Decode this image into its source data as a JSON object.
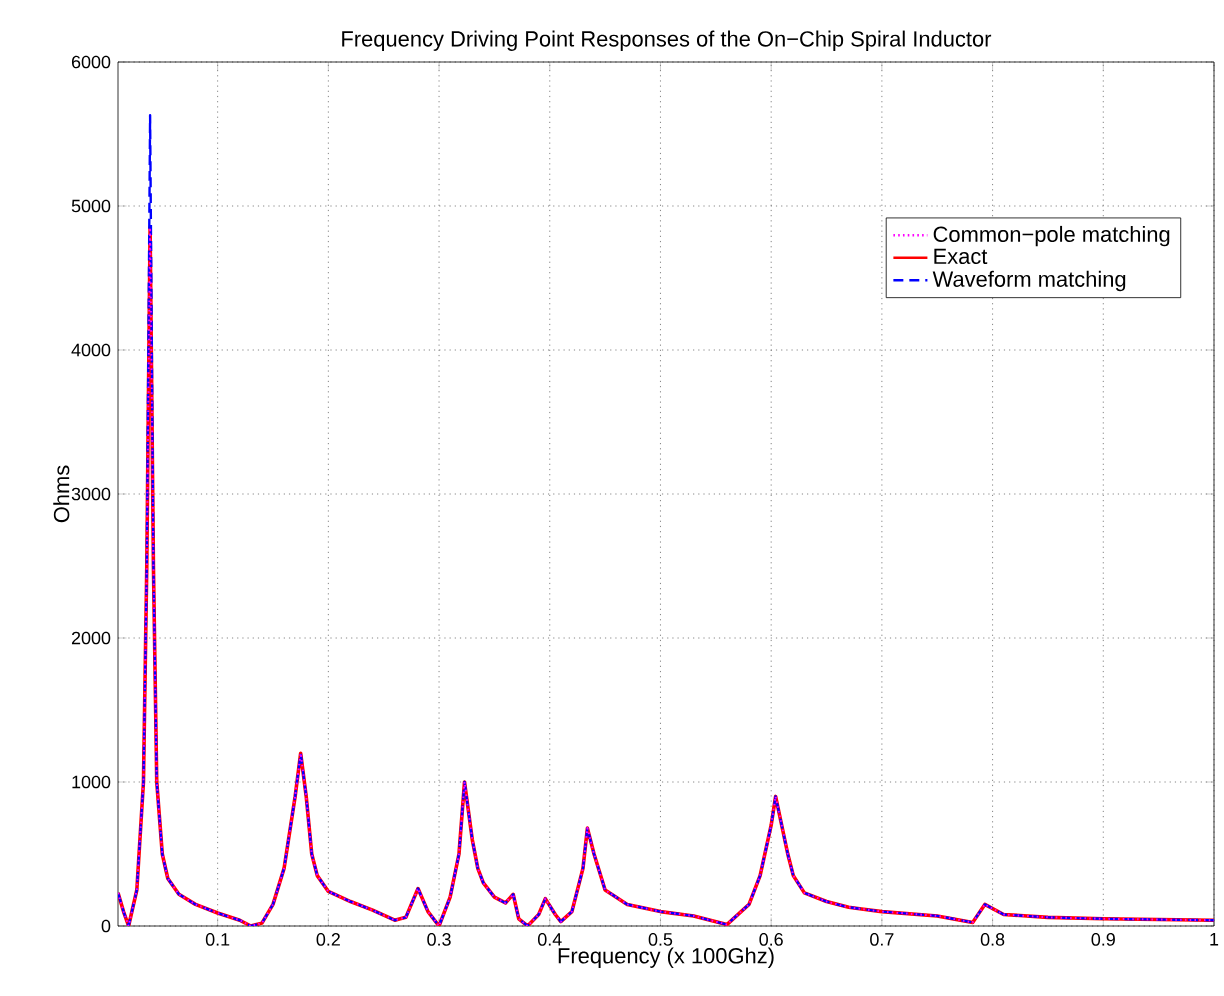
{
  "chart_data": {
    "type": "line",
    "title": "Frequency Driving Point Responses of the On−Chip Spiral Inductor",
    "xlabel": "Frequency (x 100Ghz)",
    "ylabel": "Ohms",
    "x": [
      0.01,
      0.015,
      0.0196,
      0.027,
      0.033,
      0.036,
      0.039,
      0.042,
      0.045,
      0.05,
      0.055,
      0.065,
      0.08,
      0.1,
      0.12,
      0.13,
      0.14,
      0.15,
      0.16,
      0.17,
      0.175,
      0.18,
      0.185,
      0.19,
      0.2,
      0.22,
      0.24,
      0.26,
      0.27,
      0.281,
      0.29,
      0.3,
      0.31,
      0.318,
      0.323,
      0.33,
      0.335,
      0.34,
      0.35,
      0.36,
      0.367,
      0.372,
      0.38,
      0.39,
      0.396,
      0.405,
      0.41,
      0.42,
      0.43,
      0.434,
      0.44,
      0.45,
      0.47,
      0.5,
      0.53,
      0.56,
      0.58,
      0.59,
      0.6,
      0.604,
      0.615,
      0.62,
      0.63,
      0.65,
      0.67,
      0.68,
      0.7,
      0.75,
      0.782,
      0.793,
      0.81,
      0.85,
      0.9,
      1.0
    ],
    "series": [
      {
        "name": "Common−pole matching",
        "color": "#ff00ff",
        "line_style": "dotted",
        "values": [
          230,
          100,
          0,
          250,
          1000,
          2500,
          4850,
          2500,
          1000,
          500,
          330,
          220,
          150,
          90,
          40,
          0,
          20,
          150,
          400,
          900,
          1200,
          900,
          500,
          350,
          240,
          170,
          110,
          40,
          60,
          260,
          100,
          0,
          200,
          500,
          1000,
          600,
          400,
          300,
          200,
          160,
          220,
          50,
          0,
          80,
          190,
          80,
          30,
          100,
          400,
          680,
          500,
          250,
          150,
          100,
          70,
          10,
          150,
          350,
          700,
          900,
          500,
          350,
          230,
          170,
          130,
          120,
          100,
          70,
          25,
          150,
          80,
          60,
          50,
          40
        ]
      },
      {
        "name": "Exact",
        "color": "#ff0000",
        "line_style": "solid",
        "values": [
          230,
          100,
          0,
          250,
          1000,
          2500,
          4850,
          2500,
          1000,
          500,
          330,
          220,
          150,
          90,
          40,
          0,
          20,
          150,
          400,
          900,
          1200,
          900,
          500,
          350,
          240,
          170,
          110,
          40,
          60,
          260,
          100,
          0,
          200,
          500,
          1000,
          600,
          400,
          300,
          200,
          160,
          220,
          50,
          0,
          80,
          190,
          80,
          30,
          100,
          400,
          680,
          500,
          250,
          150,
          100,
          70,
          10,
          150,
          350,
          700,
          900,
          500,
          350,
          230,
          170,
          130,
          120,
          100,
          70,
          25,
          150,
          80,
          60,
          50,
          40
        ]
      },
      {
        "name": "Waveform matching",
        "color": "#0000ff",
        "line_style": "dashed",
        "values": [
          230,
          100,
          0,
          250,
          1000,
          2500,
          5630,
          2500,
          1000,
          500,
          330,
          220,
          150,
          90,
          40,
          0,
          20,
          150,
          400,
          900,
          1200,
          900,
          500,
          350,
          240,
          170,
          110,
          40,
          60,
          260,
          100,
          0,
          200,
          500,
          1000,
          600,
          400,
          300,
          200,
          160,
          220,
          50,
          0,
          80,
          190,
          80,
          30,
          100,
          400,
          680,
          500,
          250,
          150,
          100,
          70,
          10,
          150,
          350,
          700,
          900,
          500,
          350,
          230,
          170,
          130,
          120,
          100,
          70,
          25,
          150,
          80,
          60,
          50,
          40
        ]
      }
    ],
    "xlim": [
      0.01,
      1
    ],
    "ylim": [
      0,
      6000
    ],
    "xticks": [
      0.1,
      0.2,
      0.3,
      0.4,
      0.5,
      0.6,
      0.7,
      0.8,
      0.9,
      1
    ],
    "yticks": [
      0,
      1000,
      2000,
      3000,
      4000,
      5000,
      6000
    ],
    "grid": true,
    "legend": "top right",
    "marker": "none"
  }
}
